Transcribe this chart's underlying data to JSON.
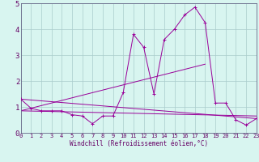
{
  "xlabel": "Windchill (Refroidissement éolien,°C)",
  "bg_color": "#d8f5f0",
  "grid_color": "#aacccc",
  "line_color": "#990099",
  "spine_color": "#666688",
  "xlabel_color": "#660066",
  "tick_color": "#660066",
  "xlim": [
    0,
    23
  ],
  "ylim": [
    0,
    5
  ],
  "xticks": [
    0,
    1,
    2,
    3,
    4,
    5,
    6,
    7,
    8,
    9,
    10,
    11,
    12,
    13,
    14,
    15,
    16,
    17,
    18,
    19,
    20,
    21,
    22,
    23
  ],
  "yticks": [
    0,
    1,
    2,
    3,
    4,
    5
  ],
  "series1_x": [
    0,
    1,
    2,
    3,
    4,
    5,
    6,
    7,
    8,
    9,
    10,
    11,
    12,
    13,
    14,
    15,
    16,
    17,
    18,
    19,
    20,
    21,
    22,
    23
  ],
  "series1_y": [
    1.3,
    0.95,
    0.85,
    0.85,
    0.85,
    0.7,
    0.65,
    0.35,
    0.65,
    0.65,
    1.55,
    3.8,
    3.3,
    1.5,
    3.6,
    4.0,
    4.55,
    4.85,
    4.25,
    1.15,
    1.15,
    0.5,
    0.3,
    0.55
  ],
  "series2_x": [
    0,
    23
  ],
  "series2_y": [
    1.3,
    0.55
  ],
  "series3_x": [
    0,
    18
  ],
  "series3_y": [
    0.85,
    2.65
  ],
  "series4_x": [
    0,
    23
  ],
  "series4_y": [
    0.85,
    0.65
  ]
}
